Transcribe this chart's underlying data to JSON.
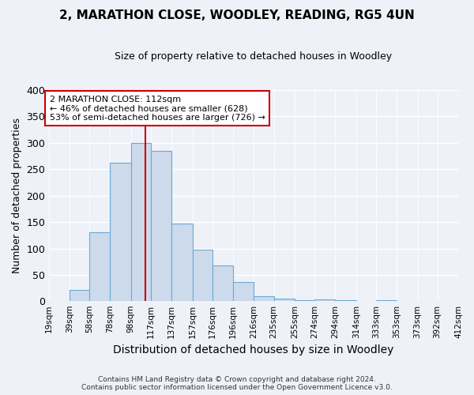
{
  "title": "2, MARATHON CLOSE, WOODLEY, READING, RG5 4UN",
  "subtitle": "Size of property relative to detached houses in Woodley",
  "xlabel": "Distribution of detached houses by size in Woodley",
  "ylabel": "Number of detached properties",
  "bar_color": "#ccdaec",
  "bar_edge_color": "#6aaad4",
  "background_color": "#eef2f8",
  "grid_color": "#ffffff",
  "bin_edges": [
    19,
    39,
    58,
    78,
    98,
    117,
    137,
    157,
    176,
    196,
    216,
    235,
    255,
    274,
    294,
    314,
    333,
    353,
    373,
    392,
    412
  ],
  "bin_labels": [
    "19sqm",
    "39sqm",
    "58sqm",
    "78sqm",
    "98sqm",
    "117sqm",
    "137sqm",
    "157sqm",
    "176sqm",
    "196sqm",
    "216sqm",
    "235sqm",
    "255sqm",
    "274sqm",
    "294sqm",
    "314sqm",
    "333sqm",
    "353sqm",
    "373sqm",
    "392sqm",
    "412sqm"
  ],
  "counts": [
    0,
    22,
    130,
    263,
    300,
    284,
    147,
    98,
    68,
    37,
    10,
    5,
    2,
    3,
    2,
    1,
    2,
    1,
    0,
    1
  ],
  "vline_x": 112,
  "vline_color": "#cc0000",
  "annotation_border_color": "#cc0000",
  "annotation_text_line1": "2 MARATHON CLOSE: 112sqm",
  "annotation_text_line2": "← 46% of detached houses are smaller (628)",
  "annotation_text_line3": "53% of semi-detached houses are larger (726) →",
  "ylim": [
    0,
    400
  ],
  "yticks": [
    0,
    50,
    100,
    150,
    200,
    250,
    300,
    350,
    400
  ],
  "footer_line1": "Contains HM Land Registry data © Crown copyright and database right 2024.",
  "footer_line2": "Contains public sector information licensed under the Open Government Licence v3.0."
}
